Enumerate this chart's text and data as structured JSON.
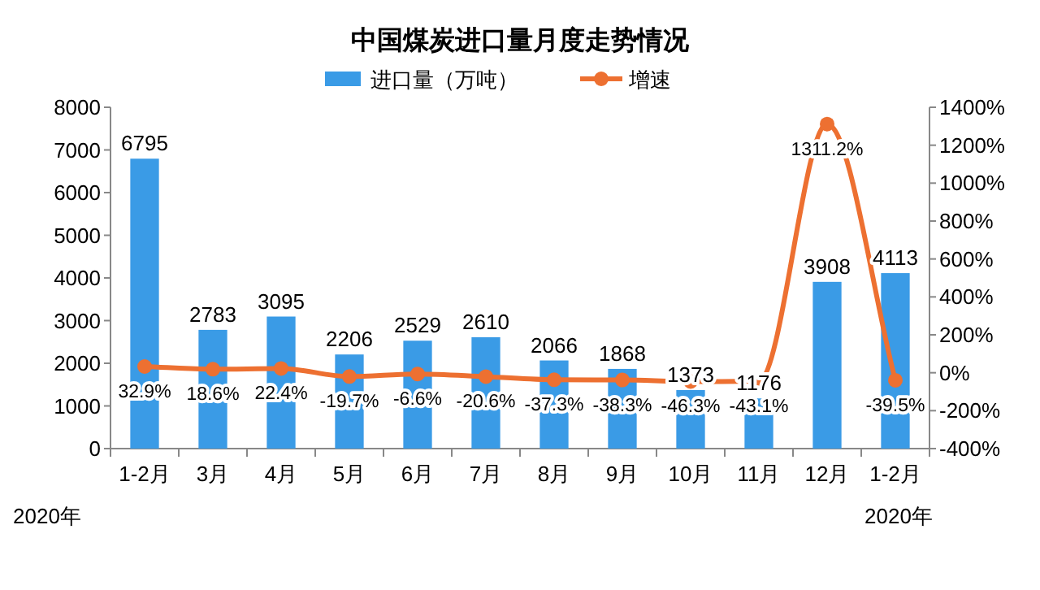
{
  "chart_data": {
    "type": "bar",
    "title": "中国煤炭进口量月度走势情况",
    "categories": [
      "1-2月",
      "3月",
      "4月",
      "5月",
      "6月",
      "7月",
      "8月",
      "9月",
      "10月",
      "11月",
      "12月",
      "1-2月"
    ],
    "series": [
      {
        "name": "进口量（万吨）",
        "color": "#3a9be6",
        "values": [
          6795,
          2783,
          3095,
          2206,
          2529,
          2610,
          2066,
          1868,
          1373,
          1176,
          3908,
          4113
        ],
        "value_labels": [
          "6795",
          "2783",
          "3095",
          "2206",
          "2529",
          "2610",
          "2066",
          "1868",
          "1373",
          "1176",
          "3908",
          "4113"
        ]
      },
      {
        "name": "增速",
        "type": "line",
        "axis": "y2",
        "color": "#ed7031",
        "marker": "circle",
        "values": [
          32.9,
          18.6,
          22.4,
          -19.7,
          -6.6,
          -20.6,
          -37.3,
          -38.3,
          -46.3,
          -43.1,
          1311.2,
          -39.5
        ],
        "value_labels": [
          "32.9%",
          "18.6%",
          "22.4%",
          "-19.7%",
          "-6.6%",
          "-20.6%",
          "-37.3%",
          "-38.3%",
          "-46.3%",
          "-43.1%",
          "1311.2%",
          "-39.5%"
        ]
      }
    ],
    "ylim": [
      0,
      8000
    ],
    "yticks": [
      0,
      1000,
      2000,
      3000,
      4000,
      5000,
      6000,
      7000,
      8000
    ],
    "y2lim": [
      -400,
      1400
    ],
    "y2ticks": [
      {
        "value": -400,
        "label": "-400%"
      },
      {
        "value": -200,
        "label": "-200%"
      },
      {
        "value": 0,
        "label": "0%"
      },
      {
        "value": 200,
        "label": "200%"
      },
      {
        "value": 400,
        "label": "400%"
      },
      {
        "value": 600,
        "label": "600%"
      },
      {
        "value": 800,
        "label": "800%"
      },
      {
        "value": 1000,
        "label": "1000%"
      },
      {
        "value": 1200,
        "label": "1200%"
      },
      {
        "value": 1400,
        "label": "1400%"
      }
    ],
    "legend": "top",
    "annotations": [
      "2020年",
      "2020年"
    ]
  }
}
